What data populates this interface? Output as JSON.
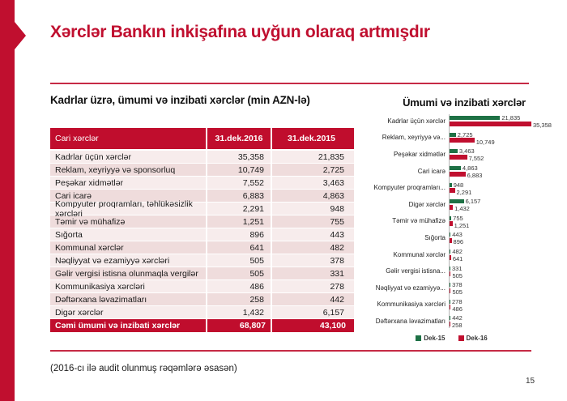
{
  "slide": {
    "title": "Xərclər Bankın inkişafına uyğun olaraq artmışdır",
    "footnote": "(2016-cı ilə audit olunmuş rəqəmlərə əsasən)",
    "page_number": "15"
  },
  "colors": {
    "brand_red": "#C00F2F",
    "green": "#1E7145",
    "row_light": "#F7ECEC",
    "row_dark": "#EFDCDC"
  },
  "table": {
    "section_title": "Kadrlar üzrə, ümumi və inzibati xərclər (min AZN-lə)",
    "headers": [
      "Cari xərclər",
      "31.dek.2016",
      "31.dek.2015"
    ],
    "rows": [
      [
        "Kadrlar üçün xərclər",
        "35,358",
        "21,835"
      ],
      [
        "Reklam, xeyriyyə və sponsorluq",
        "10,749",
        "2,725"
      ],
      [
        "Peşəkar xidmətlər",
        "7,552",
        "3,463"
      ],
      [
        "Cari icarə",
        "6,883",
        "4,863"
      ],
      [
        "Kompyuter proqramları, təhlükəsizlik xərcləri",
        "2,291",
        "948"
      ],
      [
        "Təmir və mühafizə",
        "1,251",
        "755"
      ],
      [
        "Sığorta",
        "896",
        "443"
      ],
      [
        "Kommunal xərclər",
        "641",
        "482"
      ],
      [
        "Nəqliyyat və ezamiyyə xərcləri",
        "505",
        "378"
      ],
      [
        "Gəlir vergisi istisna olunmaqla vergilər",
        "505",
        "331"
      ],
      [
        "Kommunikasiya xərcləri",
        "486",
        "278"
      ],
      [
        "Dəftərxana ləvazimatları",
        "258",
        "442"
      ],
      [
        "Digər xərclər",
        "1,432",
        "6,157"
      ]
    ],
    "total_row": [
      "Cəmi ümumi və inzibati xərclər",
      "68,807",
      "43,100"
    ]
  },
  "chart_data": {
    "type": "bar",
    "orientation": "horizontal",
    "title": "Ümumi və inzibati xərclər",
    "categories": [
      "Kadrlar üçün xərclər",
      "Reklam, xeyriyyə və...",
      "Peşəkar xidmətlər",
      "Cari icarə",
      "Kompyuter proqramları...",
      "Digər xərclər",
      "Təmir və mühafizə",
      "Sığorta",
      "Kommunal xərclər",
      "Gəlir vergisi istisna...",
      "Nəqliyyat və ezamiyyə...",
      "Kommunikasiya xərcləri",
      "Dəftərxana ləvazimatları"
    ],
    "series": [
      {
        "name": "Dek-15",
        "color": "#1E7145",
        "values": [
          21835,
          2725,
          3463,
          4863,
          948,
          6157,
          755,
          443,
          482,
          331,
          378,
          278,
          442
        ]
      },
      {
        "name": "Dek-16",
        "color": "#C00F2F",
        "values": [
          35358,
          10749,
          7552,
          6883,
          2291,
          1432,
          1251,
          896,
          641,
          505,
          505,
          486,
          258
        ]
      }
    ],
    "value_labels": true,
    "xmax": 35358,
    "legend_position": "bottom"
  }
}
